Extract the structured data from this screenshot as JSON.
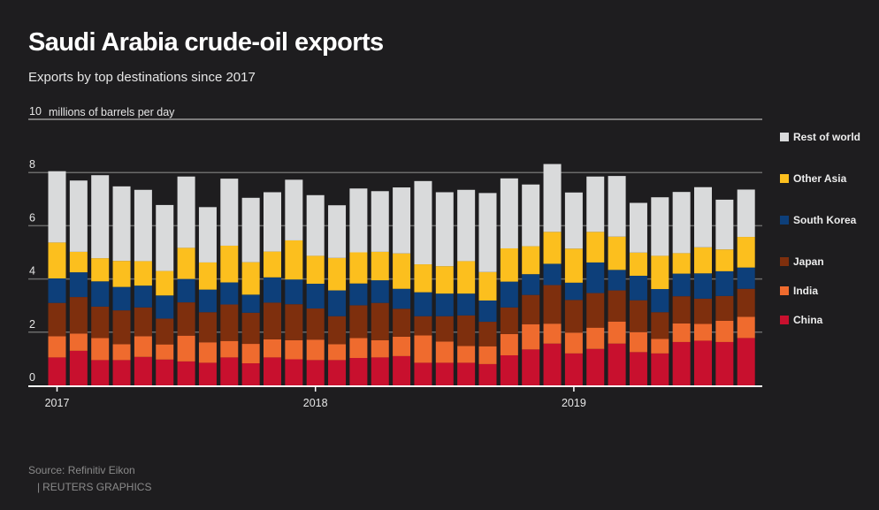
{
  "header": {
    "title": "Saudi Arabia crude-oil exports",
    "subtitle": "Exports by top destinations since 2017"
  },
  "footer": {
    "source": "Source: Refinitiv Eikon",
    "separator": "|",
    "credit": "REUTERS GRAPHICS"
  },
  "colors": {
    "background": "#1e1d1f",
    "gridline": "#6a6a6a",
    "baseline": "#ffffff",
    "China": "#c8102e",
    "India": "#ef6b2e",
    "Japan": "#7e2f0d",
    "South Korea": "#0d3f7a",
    "Other Asia": "#fcbf1e",
    "Rest of world": "#d9dadb"
  },
  "legend": [
    {
      "key": "Rest of world",
      "label": "Rest of world"
    },
    {
      "key": "Other Asia",
      "label": "Other Asia"
    },
    {
      "key": "South Korea",
      "label": "South Korea"
    },
    {
      "key": "Japan",
      "label": "Japan"
    },
    {
      "key": "India",
      "label": "India"
    },
    {
      "key": "China",
      "label": "China"
    }
  ],
  "chart_data": {
    "type": "bar",
    "stacked": true,
    "title": "Saudi Arabia crude-oil exports",
    "subtitle": "Exports by top destinations since 2017",
    "ylabel": "millions of barrels per day",
    "ylim": [
      0,
      10
    ],
    "yticks": [
      0,
      2,
      4,
      6,
      8,
      10
    ],
    "grid": true,
    "legend_position": "right",
    "xtick_labels": [
      {
        "index": 0,
        "label": "2017"
      },
      {
        "index": 12,
        "label": "2018"
      },
      {
        "index": 24,
        "label": "2019"
      }
    ],
    "categories": [
      "2017-01",
      "2017-02",
      "2017-03",
      "2017-04",
      "2017-05",
      "2017-06",
      "2017-07",
      "2017-08",
      "2017-09",
      "2017-10",
      "2017-11",
      "2017-12",
      "2018-01",
      "2018-02",
      "2018-03",
      "2018-04",
      "2018-05",
      "2018-06",
      "2018-07",
      "2018-08",
      "2018-09",
      "2018-10",
      "2018-11",
      "2018-12",
      "2019-01",
      "2019-02",
      "2019-03",
      "2019-04",
      "2019-05",
      "2019-06",
      "2019-07",
      "2019-08",
      "2019-09"
    ],
    "series": [
      {
        "name": "China",
        "values": [
          1.05,
          1.3,
          0.95,
          0.95,
          1.07,
          0.97,
          0.9,
          0.85,
          1.05,
          0.83,
          1.05,
          0.98,
          0.95,
          0.95,
          1.03,
          1.05,
          1.1,
          0.85,
          0.85,
          0.85,
          0.8,
          1.13,
          1.35,
          1.57,
          1.2,
          1.37,
          1.57,
          1.25,
          1.2,
          1.63,
          1.68,
          1.63,
          1.78
        ]
      },
      {
        "name": "India",
        "values": [
          0.8,
          0.65,
          0.83,
          0.6,
          0.78,
          0.57,
          0.97,
          0.77,
          0.62,
          0.73,
          0.68,
          0.72,
          0.77,
          0.6,
          0.75,
          0.65,
          0.73,
          1.03,
          0.8,
          0.63,
          0.67,
          0.8,
          0.95,
          0.75,
          0.78,
          0.8,
          0.83,
          0.75,
          0.55,
          0.7,
          0.63,
          0.8,
          0.8
        ]
      },
      {
        "name": "Japan",
        "values": [
          1.25,
          1.37,
          1.18,
          1.27,
          1.08,
          0.97,
          1.25,
          1.13,
          1.37,
          1.17,
          1.38,
          1.35,
          1.17,
          1.05,
          1.23,
          1.4,
          1.05,
          0.72,
          0.95,
          1.15,
          0.92,
          1.0,
          1.1,
          1.45,
          1.23,
          1.3,
          1.17,
          1.2,
          1.0,
          1.02,
          0.95,
          0.93,
          1.05
        ]
      },
      {
        "name": "South Korea",
        "values": [
          0.92,
          0.93,
          0.95,
          0.88,
          0.82,
          0.87,
          0.88,
          0.85,
          0.83,
          0.68,
          0.95,
          0.93,
          0.93,
          0.97,
          0.82,
          0.85,
          0.75,
          0.9,
          0.85,
          0.82,
          0.8,
          0.97,
          0.78,
          0.8,
          0.65,
          1.15,
          0.77,
          0.92,
          0.87,
          0.85,
          0.95,
          0.93,
          0.8
        ]
      },
      {
        "name": "Other Asia",
        "values": [
          1.35,
          0.77,
          0.87,
          0.98,
          0.92,
          0.92,
          1.17,
          1.02,
          1.38,
          1.22,
          0.97,
          1.47,
          1.05,
          1.22,
          1.17,
          1.07,
          1.33,
          1.05,
          1.03,
          1.22,
          1.07,
          1.25,
          1.05,
          1.2,
          1.28,
          1.15,
          1.25,
          0.87,
          1.25,
          0.77,
          0.98,
          0.82,
          1.15
        ]
      },
      {
        "name": "Rest of world",
        "values": [
          2.68,
          2.68,
          3.12,
          2.8,
          2.68,
          2.48,
          2.68,
          2.08,
          2.52,
          2.42,
          2.23,
          2.28,
          2.28,
          1.98,
          2.4,
          2.28,
          2.48,
          3.13,
          2.78,
          2.68,
          2.97,
          2.63,
          2.32,
          2.55,
          2.11,
          2.08,
          2.28,
          1.87,
          2.2,
          2.3,
          2.26,
          1.87,
          1.78
        ]
      }
    ]
  }
}
